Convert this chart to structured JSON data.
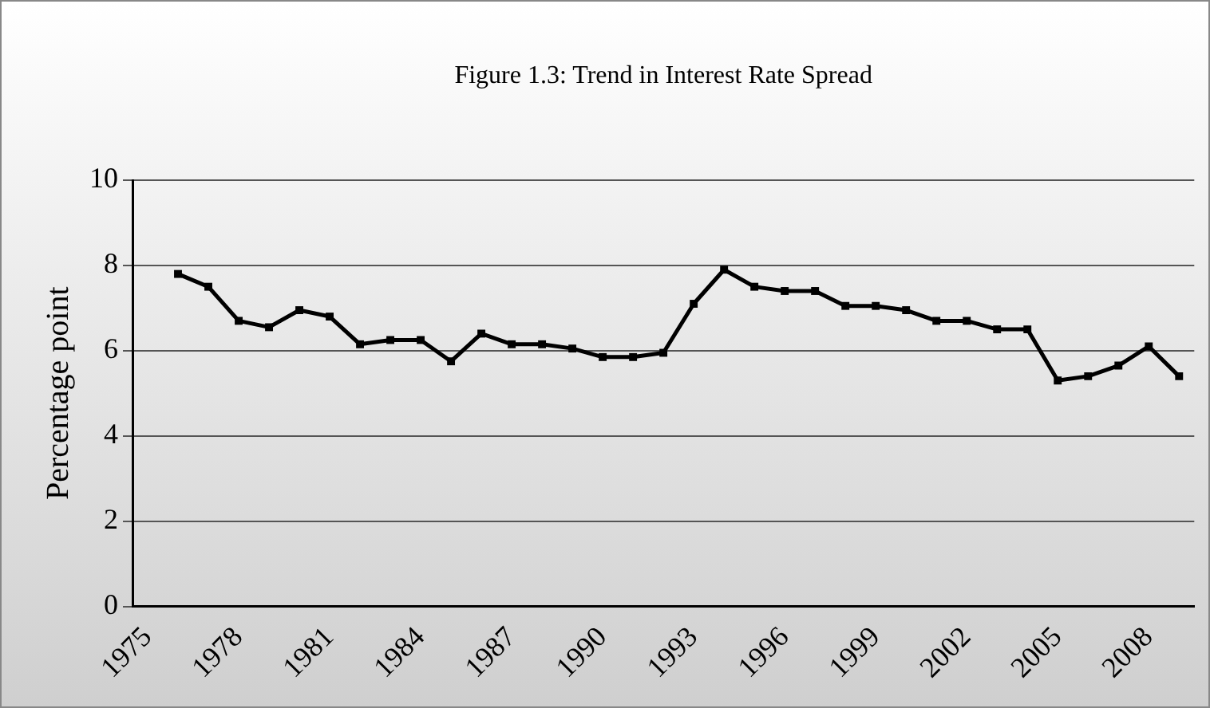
{
  "chart_data": {
    "type": "line",
    "title": "Figure 1.3: Trend in Interest Rate Spread",
    "ylabel": "Percentage point",
    "categories": [
      "1975",
      null,
      null,
      "1978",
      null,
      null,
      "1981",
      null,
      null,
      "1984",
      null,
      null,
      "1987",
      null,
      null,
      "1990",
      null,
      null,
      "1993",
      null,
      null,
      "1996",
      null,
      null,
      "1999",
      null,
      null,
      "2002",
      null,
      null,
      "2005",
      null,
      null,
      "2008",
      null
    ],
    "series": [
      {
        "color": "#000000",
        "values": [
          null,
          7.8,
          7.5,
          6.7,
          6.55,
          6.95,
          6.8,
          6.15,
          6.25,
          6.25,
          5.75,
          6.4,
          6.15,
          6.15,
          6.05,
          5.85,
          5.85,
          5.95,
          7.1,
          7.9,
          7.5,
          7.4,
          7.4,
          7.05,
          7.05,
          6.95,
          6.7,
          6.7,
          6.5,
          6.5,
          5.3,
          5.4,
          5.65,
          6.1,
          5.4
        ]
      }
    ],
    "ylim": [
      0,
      10
    ],
    "yticks": [
      0,
      2,
      4,
      6,
      8,
      10
    ],
    "grid": "y",
    "marker": "square",
    "line_style": "solid",
    "legend": false
  }
}
